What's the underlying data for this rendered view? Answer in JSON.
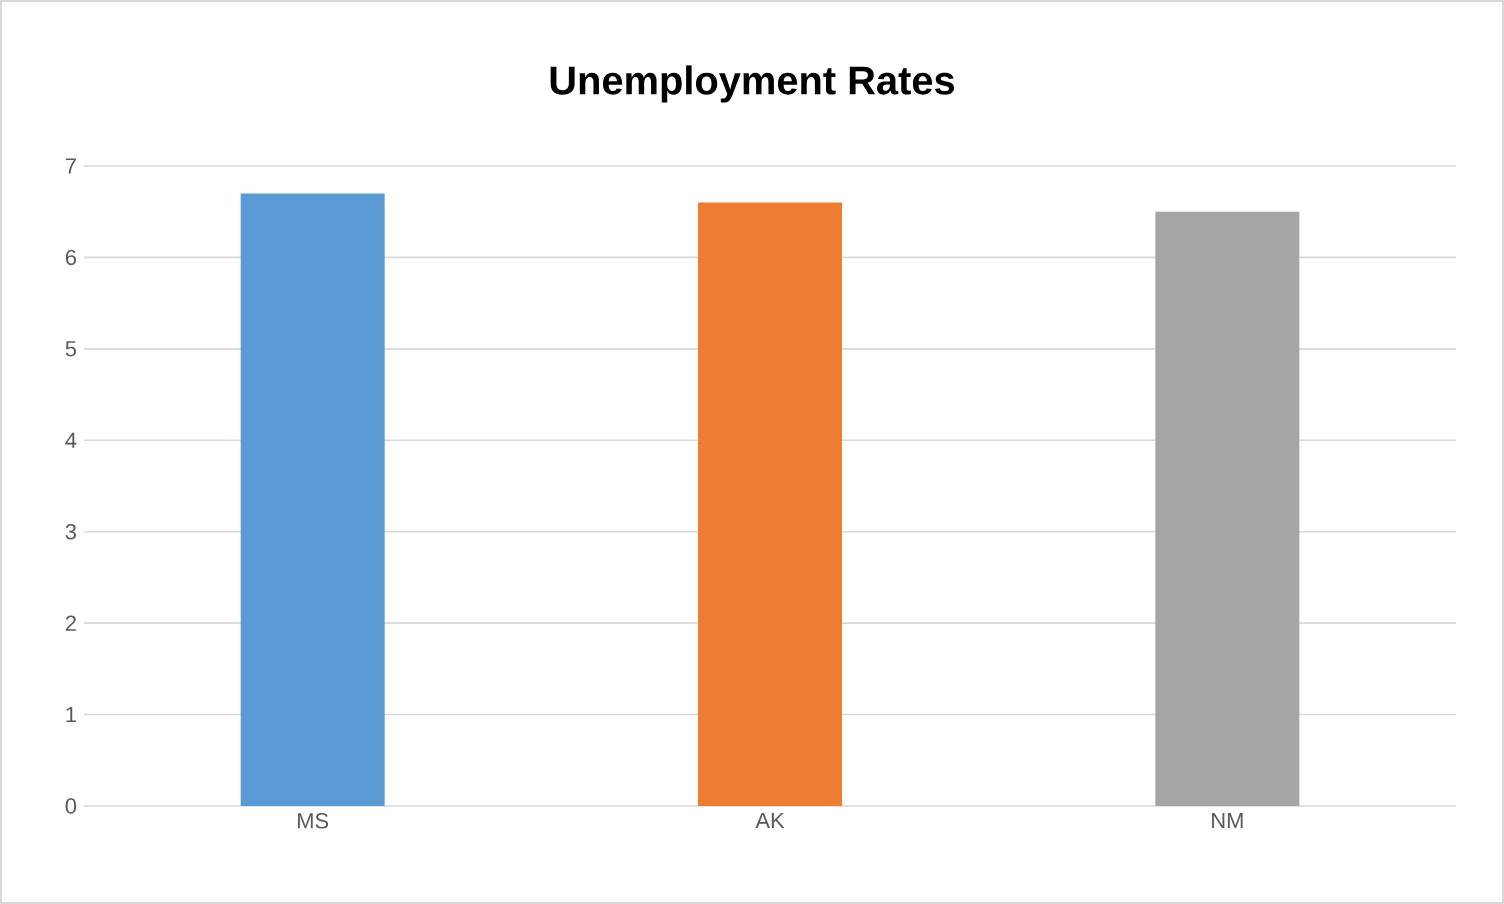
{
  "chart_data": {
    "type": "bar",
    "title": "Unemployment Rates",
    "categories": [
      "MS",
      "AK",
      "NM"
    ],
    "values": [
      6.7,
      6.6,
      6.5
    ],
    "colors": [
      "#5b9bd5",
      "#ed7d31",
      "#a5a5a5"
    ],
    "ylim": [
      0,
      7
    ],
    "yticks": [
      0,
      1,
      2,
      3,
      4,
      5,
      6,
      7
    ],
    "grid": "y"
  }
}
